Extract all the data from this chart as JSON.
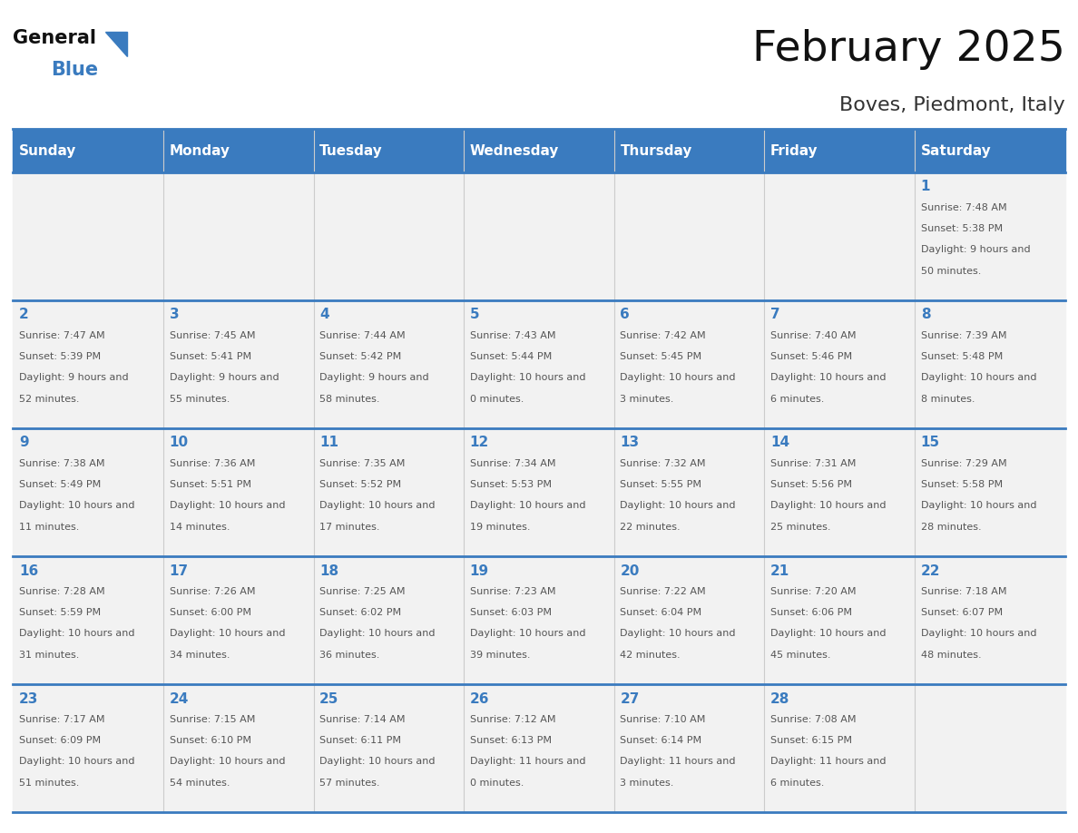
{
  "title": "February 2025",
  "subtitle": "Boves, Piedmont, Italy",
  "header_color": "#3a7bbf",
  "header_text_color": "#ffffff",
  "day_names": [
    "Sunday",
    "Monday",
    "Tuesday",
    "Wednesday",
    "Thursday",
    "Friday",
    "Saturday"
  ],
  "background_color": "#ffffff",
  "cell_bg_even": "#f2f2f2",
  "cell_bg_odd": "#ffffff",
  "border_color": "#3a7bbf",
  "day_number_color": "#3a7bbf",
  "info_text_color": "#555555",
  "logo_general_color": "#111111",
  "logo_blue_color": "#3a7bbf",
  "logo_triangle_color": "#3a7bbf",
  "calendar_data": [
    [
      null,
      null,
      null,
      null,
      null,
      null,
      {
        "day": 1,
        "sunrise": "7:48 AM",
        "sunset": "5:38 PM",
        "daylight": "9 hours and 50 minutes."
      }
    ],
    [
      {
        "day": 2,
        "sunrise": "7:47 AM",
        "sunset": "5:39 PM",
        "daylight": "9 hours and 52 minutes."
      },
      {
        "day": 3,
        "sunrise": "7:45 AM",
        "sunset": "5:41 PM",
        "daylight": "9 hours and 55 minutes."
      },
      {
        "day": 4,
        "sunrise": "7:44 AM",
        "sunset": "5:42 PM",
        "daylight": "9 hours and 58 minutes."
      },
      {
        "day": 5,
        "sunrise": "7:43 AM",
        "sunset": "5:44 PM",
        "daylight": "10 hours and 0 minutes."
      },
      {
        "day": 6,
        "sunrise": "7:42 AM",
        "sunset": "5:45 PM",
        "daylight": "10 hours and 3 minutes."
      },
      {
        "day": 7,
        "sunrise": "7:40 AM",
        "sunset": "5:46 PM",
        "daylight": "10 hours and 6 minutes."
      },
      {
        "day": 8,
        "sunrise": "7:39 AM",
        "sunset": "5:48 PM",
        "daylight": "10 hours and 8 minutes."
      }
    ],
    [
      {
        "day": 9,
        "sunrise": "7:38 AM",
        "sunset": "5:49 PM",
        "daylight": "10 hours and 11 minutes."
      },
      {
        "day": 10,
        "sunrise": "7:36 AM",
        "sunset": "5:51 PM",
        "daylight": "10 hours and 14 minutes."
      },
      {
        "day": 11,
        "sunrise": "7:35 AM",
        "sunset": "5:52 PM",
        "daylight": "10 hours and 17 minutes."
      },
      {
        "day": 12,
        "sunrise": "7:34 AM",
        "sunset": "5:53 PM",
        "daylight": "10 hours and 19 minutes."
      },
      {
        "day": 13,
        "sunrise": "7:32 AM",
        "sunset": "5:55 PM",
        "daylight": "10 hours and 22 minutes."
      },
      {
        "day": 14,
        "sunrise": "7:31 AM",
        "sunset": "5:56 PM",
        "daylight": "10 hours and 25 minutes."
      },
      {
        "day": 15,
        "sunrise": "7:29 AM",
        "sunset": "5:58 PM",
        "daylight": "10 hours and 28 minutes."
      }
    ],
    [
      {
        "day": 16,
        "sunrise": "7:28 AM",
        "sunset": "5:59 PM",
        "daylight": "10 hours and 31 minutes."
      },
      {
        "day": 17,
        "sunrise": "7:26 AM",
        "sunset": "6:00 PM",
        "daylight": "10 hours and 34 minutes."
      },
      {
        "day": 18,
        "sunrise": "7:25 AM",
        "sunset": "6:02 PM",
        "daylight": "10 hours and 36 minutes."
      },
      {
        "day": 19,
        "sunrise": "7:23 AM",
        "sunset": "6:03 PM",
        "daylight": "10 hours and 39 minutes."
      },
      {
        "day": 20,
        "sunrise": "7:22 AM",
        "sunset": "6:04 PM",
        "daylight": "10 hours and 42 minutes."
      },
      {
        "day": 21,
        "sunrise": "7:20 AM",
        "sunset": "6:06 PM",
        "daylight": "10 hours and 45 minutes."
      },
      {
        "day": 22,
        "sunrise": "7:18 AM",
        "sunset": "6:07 PM",
        "daylight": "10 hours and 48 minutes."
      }
    ],
    [
      {
        "day": 23,
        "sunrise": "7:17 AM",
        "sunset": "6:09 PM",
        "daylight": "10 hours and 51 minutes."
      },
      {
        "day": 24,
        "sunrise": "7:15 AM",
        "sunset": "6:10 PM",
        "daylight": "10 hours and 54 minutes."
      },
      {
        "day": 25,
        "sunrise": "7:14 AM",
        "sunset": "6:11 PM",
        "daylight": "10 hours and 57 minutes."
      },
      {
        "day": 26,
        "sunrise": "7:12 AM",
        "sunset": "6:13 PM",
        "daylight": "11 hours and 0 minutes."
      },
      {
        "day": 27,
        "sunrise": "7:10 AM",
        "sunset": "6:14 PM",
        "daylight": "11 hours and 3 minutes."
      },
      {
        "day": 28,
        "sunrise": "7:08 AM",
        "sunset": "6:15 PM",
        "daylight": "11 hours and 6 minutes."
      },
      null
    ]
  ]
}
